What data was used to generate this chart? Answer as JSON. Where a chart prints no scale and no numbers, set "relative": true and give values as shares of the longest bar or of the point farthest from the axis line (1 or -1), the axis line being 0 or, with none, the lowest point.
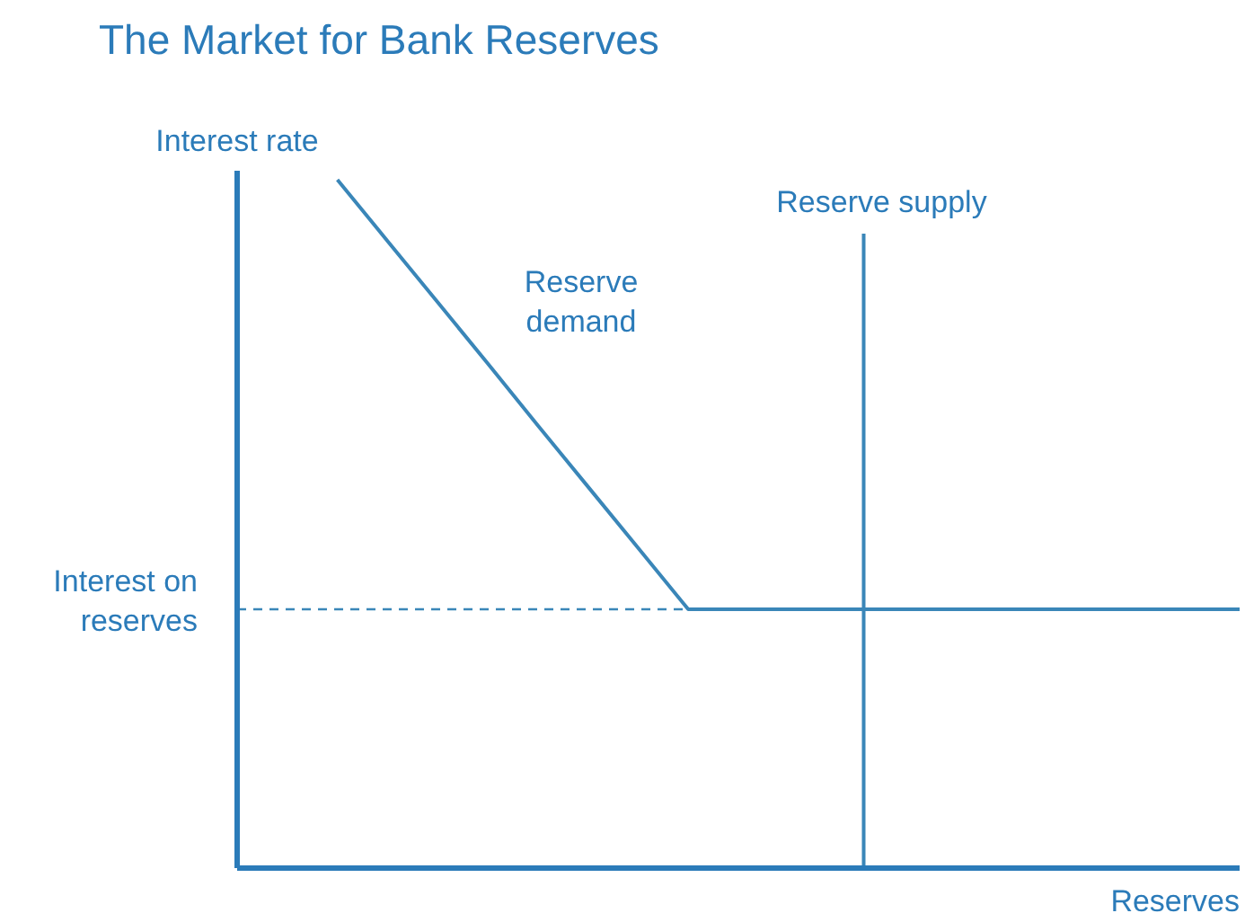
{
  "chart_data": {
    "type": "line",
    "title": "The Market for Bank Reserves",
    "xlabel": "Reserves",
    "ylabel": "Interest rate",
    "relative": true,
    "categories": [
      null,
      null,
      null,
      null,
      null,
      null,
      null,
      null,
      null,
      null,
      null,
      null,
      null,
      null,
      null,
      null,
      null,
      null,
      null,
      null,
      null
    ],
    "series": [
      {
        "name": "Reserve demand",
        "color": "#3a86b8",
        "values": [
          null,
          null,
          1.0,
          0.911,
          0.822,
          0.733,
          0.643,
          0.554,
          0.465,
          0.376,
          0.376,
          0.376,
          0.376,
          0.376,
          0.376,
          0.376,
          0.376,
          0.376,
          0.376,
          0.376,
          0.376
        ]
      }
    ],
    "annotations": [
      "Reserve supply"
    ],
    "ref_lines": [
      {
        "axis": "y",
        "value": 0.376,
        "label": "Interest on reserves",
        "color": "#3a86b8",
        "line_style": "dashed"
      }
    ]
  }
}
